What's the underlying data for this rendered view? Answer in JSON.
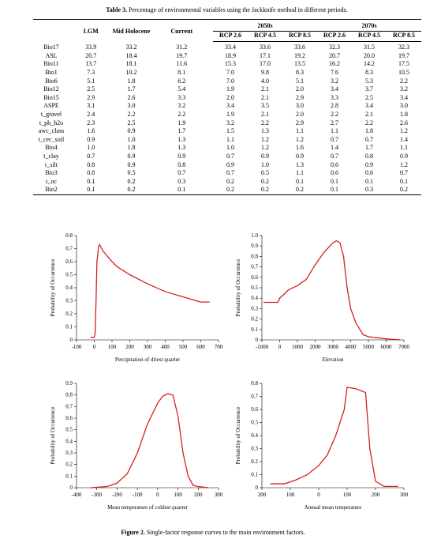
{
  "table": {
    "caption_label": "Table 3.",
    "caption_text": "Percentage of environmental variables using the Jackknife method in different periods.",
    "headers": [
      "LGM",
      "Mid Holocene",
      "Current"
    ],
    "periods": [
      "2050s",
      "2070s"
    ],
    "sub_headers": [
      "RCP 2.6",
      "RCP 4.5",
      "RCP 8.5",
      "RCP 2.6",
      "RCP 4.5",
      "RCP 8.5"
    ],
    "rows": [
      [
        "Bio17",
        "33.9",
        "33.2",
        "31.2",
        "33.4",
        "33.6",
        "33.6",
        "32.3",
        "31.5",
        "32.3"
      ],
      [
        "ASL",
        "20.7",
        "18.4",
        "19.7",
        "18.9",
        "17.1",
        "19.2",
        "20.7",
        "20.0",
        "19.7"
      ],
      [
        "Bio11",
        "13.7",
        "18.1",
        "11.6",
        "15.3",
        "17.0",
        "13.5",
        "16.2",
        "14.2",
        "17.5"
      ],
      [
        "Bio1",
        "7.3",
        "10.2",
        "8.1",
        "7.0",
        "9.8",
        "8.3",
        "7.6",
        "8.3",
        "10.5"
      ],
      [
        "Bio6",
        "5.1",
        "1.8",
        "6.2",
        "7.0",
        "4.0",
        "5.1",
        "3.2",
        "5.3",
        "2.2"
      ],
      [
        "Bio12",
        "2.5",
        "1.7",
        "5.4",
        "1.9",
        "2.1",
        "2.0",
        "3.4",
        "3.7",
        "3.2"
      ],
      [
        "Bio15",
        "2.9",
        "2.6",
        "3.3",
        "2.0",
        "2.1",
        "2.9",
        "3.3",
        "2.5",
        "3.4"
      ],
      [
        "ASPE",
        "3.1",
        "3.0",
        "3.2",
        "3.4",
        "3.5",
        "3.0",
        "2.8",
        "3.4",
        "3.0"
      ],
      [
        "t_gravel",
        "2.4",
        "2.2",
        "2.2",
        "1.9",
        "2.1",
        "2.0",
        "2.2",
        "2.1",
        "1.8"
      ],
      [
        "t_ph_h2o",
        "2.3",
        "2.5",
        "1.9",
        "3.2",
        "2.2",
        "2.9",
        "2.7",
        "2.2",
        "2.6"
      ],
      [
        "awc_class",
        "1.6",
        "0.9",
        "1.7",
        "1.5",
        "1.3",
        "1.1",
        "1.1",
        "1.8",
        "1.2"
      ],
      [
        "t_cec_soil",
        "0.9",
        "1.0",
        "1.3",
        "1.1",
        "1.2",
        "1.2",
        "0.7",
        "0.7",
        "1.4"
      ],
      [
        "Bio4",
        "1.0",
        "1.8",
        "1.3",
        "1.0",
        "1.2",
        "1.6",
        "1.4",
        "1.7",
        "1.1"
      ],
      [
        "t_clay",
        "0.7",
        "0.9",
        "0.9",
        "0.7",
        "0.9",
        "0.9",
        "0.7",
        "0.8",
        "0.9"
      ],
      [
        "t_silt",
        "0.8",
        "0.9",
        "0.8",
        "0.9",
        "1.0",
        "1.3",
        "0.6",
        "0.9",
        "1.2"
      ],
      [
        "Bio3",
        "0.8",
        "0.5",
        "0.7",
        "0.7",
        "0.5",
        "1.1",
        "0.6",
        "0.6",
        "0.7"
      ],
      [
        "t_oc",
        "0.1",
        "0.2",
        "0.3",
        "0.2",
        "0.2",
        "0.1",
        "0.1",
        "0.1",
        "0.1"
      ],
      [
        "Bio2",
        "0.1",
        "0.2",
        "0.1",
        "0.2",
        "0.2",
        "0.2",
        "0.1",
        "0.3",
        "0.2"
      ]
    ]
  },
  "chart_data": [
    {
      "type": "line",
      "xlabel": "Percipitation of driest quarter",
      "ylabel": "Probability of Occurrence",
      "color": "#d42020",
      "x": [
        -20,
        0,
        5,
        10,
        15,
        25,
        30,
        50,
        100,
        130,
        200,
        300,
        400,
        500,
        600,
        650
      ],
      "values": [
        0.02,
        0.02,
        0.05,
        0.3,
        0.6,
        0.72,
        0.73,
        0.68,
        0.6,
        0.56,
        0.5,
        0.43,
        0.37,
        0.33,
        0.29,
        0.29
      ],
      "xlim": [
        -100,
        700
      ],
      "xticks": [
        -100,
        0,
        100,
        200,
        300,
        400,
        500,
        600,
        700
      ],
      "ylim": [
        0,
        0.8
      ],
      "yticks": [
        0,
        0.1,
        0.2,
        0.3,
        0.4,
        0.5,
        0.6,
        0.7,
        0.8
      ]
    },
    {
      "type": "line",
      "xlabel": "Elevation",
      "ylabel": "Probability of Occurrence",
      "color": "#d42020",
      "x": [
        -900,
        -100,
        0,
        200,
        500,
        1000,
        1500,
        2000,
        2500,
        3000,
        3200,
        3400,
        3600,
        3800,
        4000,
        4300,
        4700,
        5000,
        6000,
        6800
      ],
      "values": [
        0.36,
        0.36,
        0.4,
        0.43,
        0.48,
        0.52,
        0.58,
        0.72,
        0.84,
        0.93,
        0.95,
        0.93,
        0.8,
        0.5,
        0.3,
        0.16,
        0.05,
        0.03,
        0.01,
        0
      ],
      "xlim": [
        -1000,
        7000
      ],
      "xticks": [
        -1000,
        0,
        1000,
        2000,
        3000,
        4000,
        5000,
        6000,
        7000
      ],
      "ylim": [
        0,
        1
      ],
      "yticks": [
        0,
        0.1,
        0.2,
        0.3,
        0.4,
        0.5,
        0.6,
        0.7,
        0.8,
        0.9,
        {
          "value": 1,
          "label": "1.0"
        }
      ]
    },
    {
      "type": "line",
      "xlabel": "Mean temperature of coldest quarter",
      "ylabel": "Probability of Occurrence",
      "color": "#d42020",
      "x": [
        -330,
        -250,
        -200,
        -150,
        -100,
        -50,
        0,
        25,
        50,
        75,
        100,
        125,
        150,
        175,
        200,
        250
      ],
      "values": [
        0,
        0.01,
        0.04,
        0.12,
        0.3,
        0.55,
        0.73,
        0.79,
        0.81,
        0.8,
        0.62,
        0.3,
        0.1,
        0.02,
        0.01,
        0
      ],
      "xlim": [
        -400,
        300
      ],
      "xticks": [
        -400,
        -300,
        -200,
        -100,
        0,
        100,
        200,
        300
      ],
      "ylim": [
        0,
        0.9
      ],
      "yticks": [
        0,
        0.1,
        0.2,
        0.3,
        0.4,
        0.5,
        0.6,
        0.7,
        0.8,
        0.9
      ]
    },
    {
      "type": "line",
      "xlabel": "Annual mean temperature",
      "ylabel": "Probability of Occurrence",
      "color": "#d42020",
      "x": [
        -170,
        -120,
        -80,
        -40,
        0,
        30,
        60,
        90,
        100,
        130,
        165,
        180,
        200,
        230,
        280
      ],
      "values": [
        0.03,
        0.03,
        0.06,
        0.1,
        0.17,
        0.25,
        0.4,
        0.6,
        0.77,
        0.76,
        0.73,
        0.3,
        0.05,
        0.01,
        0.01
      ],
      "xlim": [
        -200,
        300
      ],
      "xticks": [
        {
          "value": -200,
          "label": "200"
        },
        {
          "value": -100,
          "label": "100"
        },
        0,
        100,
        200,
        300
      ],
      "ylim": [
        0,
        0.8
      ],
      "yticks": [
        0,
        0.1,
        0.2,
        0.3,
        0.4,
        0.5,
        0.6,
        0.7,
        0.8
      ]
    }
  ],
  "figure_caption": {
    "label": "Figure 2.",
    "text": "Single-factor response curves to the main environment factors."
  }
}
